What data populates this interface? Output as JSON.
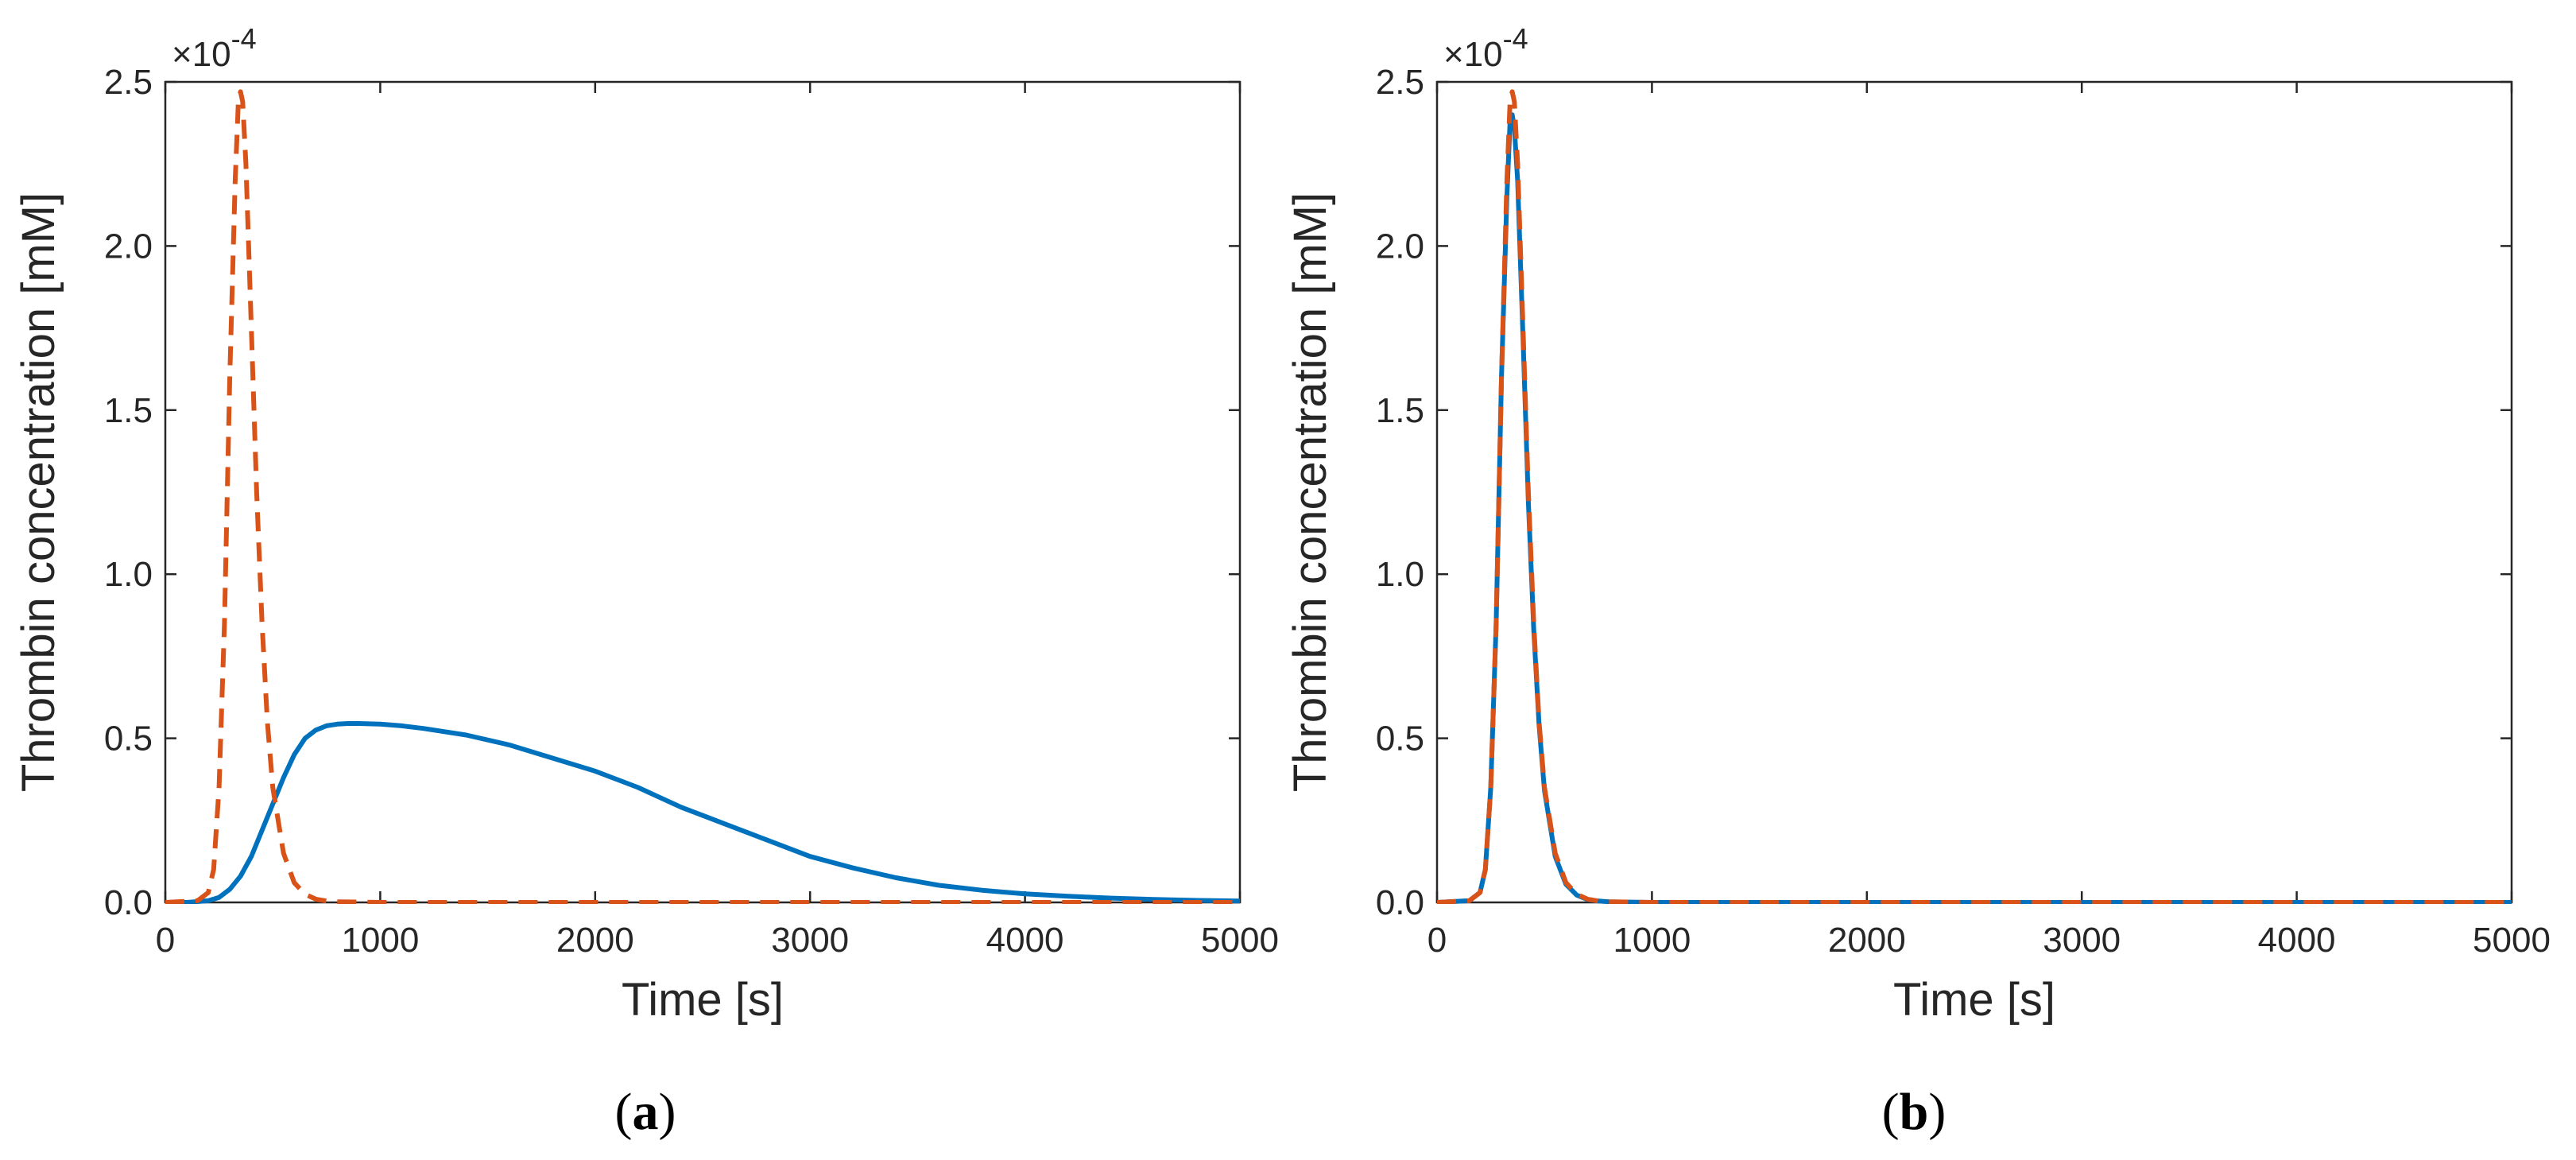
{
  "chart_data": [
    {
      "type": "line",
      "panel_label": "(a)",
      "panel_letter": "a",
      "xlabel": "Time [s]",
      "ylabel": "Thrombin concentration [mM]",
      "y_exponent_label": "×10",
      "y_exponent_power": "-4",
      "xlim": [
        0,
        5000
      ],
      "ylim": [
        0,
        2.5
      ],
      "y_scale_factor": 0.0001,
      "xticks": [
        0,
        1000,
        2000,
        3000,
        4000,
        5000
      ],
      "xtick_labels": [
        "0",
        "1000",
        "2000",
        "3000",
        "4000",
        "5000"
      ],
      "yticks": [
        0,
        0.5,
        1.0,
        1.5,
        2.0,
        2.5
      ],
      "ytick_labels": [
        "0.0",
        "0.5",
        "1.0",
        "1.5",
        "2.0",
        "2.5"
      ],
      "grid": false,
      "series": [
        {
          "style": "solid",
          "color": "#0072BD",
          "x": [
            0,
            100,
            200,
            250,
            300,
            350,
            400,
            450,
            500,
            550,
            600,
            650,
            700,
            750,
            800,
            850,
            900,
            1000,
            1100,
            1200,
            1400,
            1600,
            1800,
            2000,
            2200,
            2400,
            2600,
            2800,
            3000,
            3200,
            3400,
            3600,
            3800,
            4000,
            4200,
            4400,
            4600,
            4800,
            5000
          ],
          "y": [
            0,
            0,
            0.005,
            0.015,
            0.04,
            0.08,
            0.14,
            0.22,
            0.3,
            0.38,
            0.45,
            0.5,
            0.525,
            0.538,
            0.543,
            0.545,
            0.545,
            0.543,
            0.538,
            0.53,
            0.51,
            0.48,
            0.44,
            0.4,
            0.35,
            0.29,
            0.24,
            0.19,
            0.14,
            0.105,
            0.075,
            0.052,
            0.037,
            0.026,
            0.019,
            0.013,
            0.009,
            0.006,
            0.004
          ]
        },
        {
          "style": "dashed",
          "color": "#D95319",
          "x": [
            0,
            150,
            200,
            225,
            250,
            275,
            300,
            325,
            340,
            350,
            360,
            375,
            400,
            425,
            450,
            475,
            500,
            550,
            600,
            650,
            700,
            750,
            800,
            1000,
            1500,
            2000,
            3000,
            4000,
            5000
          ],
          "y": [
            0,
            0.005,
            0.03,
            0.1,
            0.35,
            0.85,
            1.6,
            2.2,
            2.44,
            2.47,
            2.44,
            2.25,
            1.75,
            1.25,
            0.85,
            0.55,
            0.35,
            0.15,
            0.06,
            0.025,
            0.01,
            0.004,
            0.002,
            0,
            0,
            0,
            0,
            0,
            0
          ]
        }
      ]
    },
    {
      "type": "line",
      "panel_label": "(b)",
      "panel_letter": "b",
      "xlabel": "Time [s]",
      "ylabel": "Thrombin concentration [mM]",
      "y_exponent_label": "×10",
      "y_exponent_power": "-4",
      "xlim": [
        0,
        5000
      ],
      "ylim": [
        0,
        2.5
      ],
      "y_scale_factor": 0.0001,
      "xticks": [
        0,
        1000,
        2000,
        3000,
        4000,
        5000
      ],
      "xtick_labels": [
        "0",
        "1000",
        "2000",
        "3000",
        "4000",
        "5000"
      ],
      "yticks": [
        0,
        0.5,
        1.0,
        1.5,
        2.0,
        2.5
      ],
      "ytick_labels": [
        "0.0",
        "0.5",
        "1.0",
        "1.5",
        "2.0",
        "2.5"
      ],
      "grid": false,
      "series": [
        {
          "style": "solid",
          "color": "#0072BD",
          "x": [
            0,
            150,
            200,
            225,
            250,
            275,
            300,
            325,
            340,
            350,
            360,
            375,
            400,
            425,
            450,
            475,
            500,
            550,
            600,
            650,
            700,
            750,
            800,
            1000,
            1500,
            2000,
            3000,
            4000,
            5000
          ],
          "y": [
            0,
            0.005,
            0.03,
            0.1,
            0.35,
            0.85,
            1.6,
            2.15,
            2.38,
            2.4,
            2.36,
            2.2,
            1.72,
            1.22,
            0.83,
            0.54,
            0.34,
            0.14,
            0.055,
            0.022,
            0.009,
            0.004,
            0.002,
            0,
            0,
            0,
            0,
            0,
            0
          ]
        },
        {
          "style": "dashed",
          "color": "#D95319",
          "x": [
            0,
            150,
            200,
            225,
            250,
            275,
            300,
            325,
            340,
            350,
            360,
            375,
            400,
            425,
            450,
            475,
            500,
            550,
            600,
            650,
            700,
            750,
            800,
            1000,
            1500,
            2000,
            3000,
            4000,
            5000
          ],
          "y": [
            0,
            0.005,
            0.03,
            0.1,
            0.35,
            0.85,
            1.6,
            2.2,
            2.44,
            2.47,
            2.44,
            2.25,
            1.75,
            1.25,
            0.85,
            0.55,
            0.35,
            0.15,
            0.06,
            0.025,
            0.01,
            0.004,
            0.002,
            0,
            0,
            0,
            0,
            0,
            0
          ]
        }
      ]
    }
  ]
}
